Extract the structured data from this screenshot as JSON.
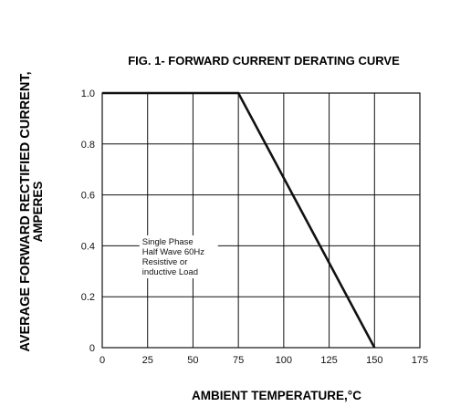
{
  "chart_data": {
    "type": "line",
    "title": "FIG. 1- FORWARD CURRENT DERATING CURVE",
    "xlabel": "AMBIENT TEMPERATURE,°C",
    "ylabel_lines": [
      "AVERAGE FORWARD RECTIFIED CURRENT,",
      "AMPERES"
    ],
    "xlim": [
      0,
      175
    ],
    "ylim": [
      0,
      1.0
    ],
    "x_ticks": [
      0,
      25,
      50,
      75,
      100,
      125,
      150,
      175
    ],
    "x_tick_labels": [
      "0",
      "25",
      "50",
      "75",
      "100",
      "125",
      "150",
      "175"
    ],
    "y_ticks": [
      0,
      0.2,
      0.4,
      0.6,
      0.8,
      1.0
    ],
    "y_tick_labels": [
      "0",
      "0.2",
      "0.4",
      "0.6",
      "0.8",
      "1.0"
    ],
    "grid": true,
    "series": [
      {
        "x": [
          0,
          75,
          150
        ],
        "y": [
          1.0,
          1.0,
          0
        ]
      }
    ],
    "annotation": {
      "lines": [
        "Single Phase",
        "Half Wave 60Hz",
        "Resistive or",
        "inductive Load"
      ],
      "x": 22,
      "y": 0.405
    }
  }
}
